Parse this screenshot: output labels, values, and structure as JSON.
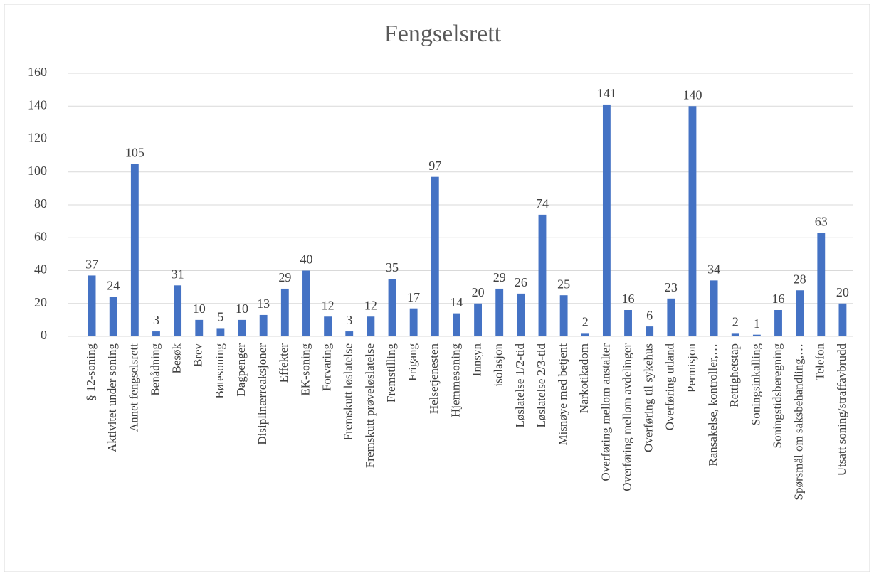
{
  "chart_data": {
    "type": "bar",
    "title": "Fengselsrett",
    "categories": [
      "§ 12-soning",
      "Aktivitet under soning",
      "Annet fengselsrett",
      "Benådning",
      "Besøk",
      "Brev",
      "Bøtesoning",
      "Dagpenger",
      "Disiplinærreaksjoner",
      "Effekter",
      "EK-soning",
      "Forvaring",
      "Fremskutt løslatelse",
      "Fremskutt prøveløslatelse",
      "Fremstilling",
      "Frigang",
      "Helsetjenesten",
      "Hjemmesoning",
      "Innsyn",
      "isolasjon",
      "Løslatelse 1/2-tid",
      "Løslatelse 2/3-tid",
      "Misnøye med betjent",
      "Narkotikadom",
      "Overføring mellom anstalter",
      "Overføring mellom avdelinger",
      "Overføring til sykehus",
      "Overføring utland",
      "Permisjon",
      "Ransakelse, kontroller,…",
      "Rettighetstap",
      "Soningsinkalling",
      "Soningstidsberegning",
      "Spørsmål om saksbehandling,…",
      "Telefon",
      "Utsatt soning/straffavbrudd"
    ],
    "values": [
      37,
      24,
      105,
      3,
      31,
      10,
      5,
      10,
      13,
      29,
      40,
      12,
      3,
      12,
      35,
      17,
      97,
      14,
      20,
      29,
      26,
      74,
      25,
      2,
      141,
      16,
      6,
      23,
      140,
      34,
      2,
      1,
      16,
      28,
      63,
      20
    ],
    "color": "#4472c4",
    "ylim": [
      0,
      160
    ],
    "yticks": [
      0,
      20,
      40,
      60,
      80,
      100,
      120,
      140,
      160
    ],
    "grid": true
  }
}
